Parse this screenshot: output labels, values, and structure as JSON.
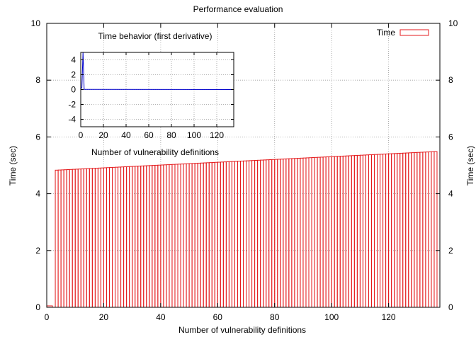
{
  "chart_data": [
    {
      "type": "bar",
      "title": "Performance evaluation",
      "xlabel": "Number of vulnerability definitions",
      "ylabel": "Time (sec)",
      "y2label": "Time (sec)",
      "xlim": [
        0,
        138
      ],
      "ylim": [
        0,
        10
      ],
      "xticks": [
        "0",
        "20",
        "40",
        "60",
        "80",
        "100",
        "120"
      ],
      "yticks": [
        "0",
        "2",
        "4",
        "6",
        "8",
        "10"
      ],
      "y2ticks": [
        "0",
        "2",
        "4",
        "6",
        "8",
        "10"
      ],
      "grid": true,
      "legend_position": "top-right",
      "series": [
        {
          "name": "Time",
          "color": "#e41a1c",
          "first_value_x": [
            0,
            2
          ],
          "first_value": 0.05,
          "x_range": [
            3,
            137
          ],
          "y_start": 4.83,
          "y_end": 5.49
        }
      ]
    },
    {
      "type": "line",
      "title": "Time behavior (first derivative)",
      "xlabel": "Number of vulnerability definitions",
      "ylabel": "",
      "xlim": [
        0,
        135
      ],
      "ylim": [
        -5,
        5
      ],
      "xticks": [
        "0",
        "20",
        "40",
        "60",
        "80",
        "100",
        "120"
      ],
      "yticks": [
        "-4",
        "-2",
        "0",
        "2",
        "4"
      ],
      "grid": true,
      "series": [
        {
          "name": "",
          "color": "#0000cc",
          "points": [
            [
              0,
              0.05
            ],
            [
              1,
              0.3
            ],
            [
              2,
              5
            ],
            [
              3,
              0.02
            ],
            [
              135,
              0
            ]
          ]
        }
      ]
    }
  ]
}
